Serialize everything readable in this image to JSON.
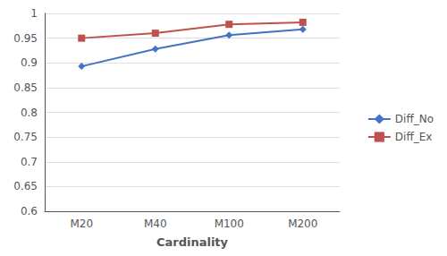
{
  "chart_data": {
    "type": "line",
    "xlabel": "Cardinality",
    "categories": [
      "M20",
      "M40",
      "M100",
      "M200"
    ],
    "series": [
      {
        "name": "Diff_No",
        "color": "#4472C4",
        "marker": "diamond",
        "values": [
          0.893,
          0.928,
          0.956,
          0.968
        ]
      },
      {
        "name": "Diff_Ex",
        "color": "#C0504D",
        "marker": "square",
        "values": [
          0.95,
          0.96,
          0.978,
          0.982
        ]
      }
    ],
    "ylim": [
      0.6,
      1
    ],
    "yticks": [
      0.6,
      0.65,
      0.7,
      0.75,
      0.8,
      0.85,
      0.9,
      0.95,
      1
    ],
    "grid": true,
    "legend": "right"
  }
}
